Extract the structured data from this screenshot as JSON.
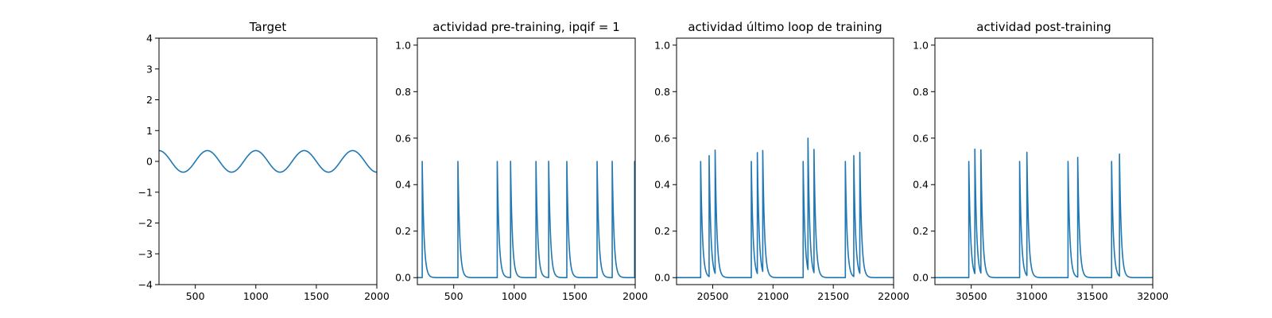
{
  "chart_data": [
    {
      "type": "line",
      "title": "Target",
      "xlim": [
        200,
        2000
      ],
      "ylim": [
        -4,
        4
      ],
      "xticks": [
        500,
        1000,
        1500,
        2000
      ],
      "yticks": [
        -4,
        -3,
        -2,
        -1,
        0,
        1,
        2,
        3,
        4
      ],
      "series": [
        {
          "color": "#1f77b4",
          "function": "sine",
          "amplitude": 0.35,
          "period": 400,
          "phase_zero_x": 300,
          "sign": -1
        }
      ]
    },
    {
      "type": "line",
      "title": "actividad pre-training, ipqif = 1",
      "xlim": [
        200,
        2000
      ],
      "ylim": [
        -0.03,
        1.03
      ],
      "xticks": [
        500,
        1000,
        1500,
        2000
      ],
      "yticks": [
        0.0,
        0.2,
        0.4,
        0.6,
        0.8,
        1.0
      ],
      "series": [
        {
          "color": "#1f77b4",
          "function": "spikes",
          "baseline": 0,
          "decay": 15,
          "spike_times": [
            240,
            535,
            860,
            970,
            1180,
            1285,
            1435,
            1685,
            1810,
            1995
          ],
          "spike_peaks": [
            0.5,
            0.5,
            0.5,
            0.5,
            0.5,
            0.5,
            0.5,
            0.5,
            0.5,
            0.5
          ]
        }
      ]
    },
    {
      "type": "line",
      "title": "actividad último loop de training",
      "xlim": [
        20200,
        22000
      ],
      "ylim": [
        -0.03,
        1.03
      ],
      "xticks": [
        20500,
        21000,
        21500,
        22000
      ],
      "yticks": [
        0.0,
        0.2,
        0.4,
        0.6,
        0.8,
        1.0
      ],
      "series": [
        {
          "color": "#1f77b4",
          "function": "spikes",
          "baseline": 0,
          "decay": 15,
          "spike_times": [
            20400,
            20470,
            20520,
            20820,
            20870,
            20915,
            21250,
            21290,
            21340,
            21600,
            21670,
            21720
          ],
          "spike_peaks": [
            0.5,
            0.52,
            0.53,
            0.5,
            0.52,
            0.52,
            0.5,
            0.565,
            0.53,
            0.5,
            0.52,
            0.52
          ]
        }
      ]
    },
    {
      "type": "line",
      "title": "actividad post-training",
      "xlim": [
        30200,
        32000
      ],
      "ylim": [
        -0.03,
        1.03
      ],
      "xticks": [
        30500,
        31000,
        31500,
        32000
      ],
      "yticks": [
        0.0,
        0.2,
        0.4,
        0.6,
        0.8,
        1.0
      ],
      "series": [
        {
          "color": "#1f77b4",
          "function": "spikes",
          "baseline": 0,
          "decay": 15,
          "spike_times": [
            30480,
            30530,
            30580,
            30900,
            30960,
            31300,
            31380,
            31660,
            31725
          ],
          "spike_peaks": [
            0.5,
            0.535,
            0.53,
            0.5,
            0.53,
            0.5,
            0.515,
            0.5,
            0.525
          ]
        }
      ]
    }
  ]
}
